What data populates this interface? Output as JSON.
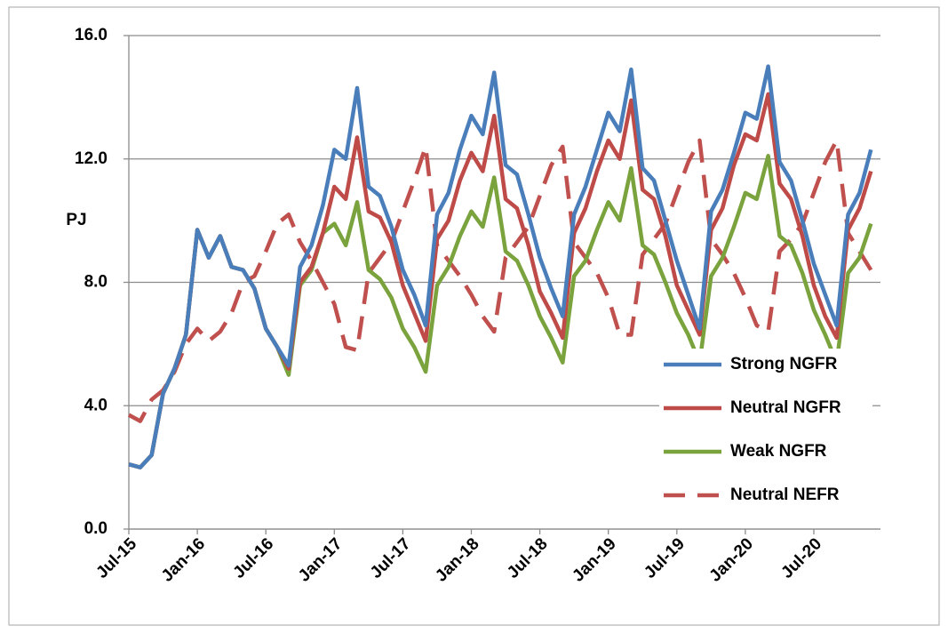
{
  "chart_data": {
    "type": "line",
    "y_label": "PJ",
    "categories": [
      "Jul-15",
      null,
      null,
      null,
      null,
      null,
      "Jan-16",
      null,
      null,
      null,
      null,
      null,
      "Jul-16",
      null,
      null,
      null,
      null,
      null,
      "Jan-17",
      null,
      null,
      null,
      null,
      null,
      "Jul-17",
      null,
      null,
      null,
      null,
      null,
      "Jan-18",
      null,
      null,
      null,
      null,
      null,
      "Jul-18",
      null,
      null,
      null,
      null,
      null,
      "Jan-19",
      null,
      null,
      null,
      null,
      null,
      "Jul-19",
      null,
      null,
      null,
      null,
      null,
      "Jan-20",
      null,
      null,
      null,
      null,
      null,
      "Jul-20",
      null,
      null,
      null,
      null,
      null
    ],
    "series": [
      {
        "name": "Strong NGFR",
        "color": "#4a7ebb",
        "dashed": false,
        "values": [
          2.1,
          2.0,
          2.4,
          4.4,
          5.2,
          6.3,
          9.7,
          8.8,
          9.5,
          8.5,
          8.4,
          7.8,
          6.5,
          5.9,
          5.3,
          8.5,
          9.2,
          10.5,
          12.3,
          12.0,
          14.3,
          11.1,
          10.8,
          9.8,
          8.4,
          7.6,
          6.6,
          10.2,
          10.9,
          12.3,
          13.4,
          12.8,
          14.8,
          11.8,
          11.5,
          10.2,
          8.8,
          7.8,
          6.9,
          10.2,
          11.1,
          12.3,
          13.5,
          12.9,
          14.9,
          11.7,
          11.3,
          10.0,
          8.7,
          7.6,
          6.5,
          10.3,
          11.0,
          12.2,
          13.5,
          13.3,
          15.0,
          11.9,
          11.3,
          10.0,
          8.6,
          7.6,
          6.6,
          10.2,
          10.9,
          12.3
        ]
      },
      {
        "name": "Neutral NGFR",
        "color": "#be4b48",
        "dashed": false,
        "values": [
          2.1,
          2.0,
          2.4,
          4.4,
          5.2,
          6.3,
          9.7,
          8.8,
          9.5,
          8.5,
          8.4,
          7.8,
          6.5,
          5.9,
          5.2,
          8.0,
          8.5,
          9.6,
          11.1,
          10.7,
          12.7,
          10.3,
          10.1,
          9.3,
          7.9,
          7.0,
          6.1,
          9.4,
          10.0,
          11.3,
          12.2,
          11.6,
          13.4,
          10.7,
          10.4,
          9.2,
          7.7,
          7.0,
          6.2,
          9.6,
          10.4,
          11.6,
          12.6,
          12.0,
          13.9,
          11.0,
          10.7,
          9.5,
          7.9,
          7.1,
          6.3,
          9.7,
          10.4,
          11.8,
          12.8,
          12.6,
          14.1,
          11.2,
          10.7,
          9.5,
          7.9,
          6.9,
          6.2,
          9.7,
          10.4,
          11.6
        ]
      },
      {
        "name": "Weak NGFR",
        "color": "#7aa33e",
        "dashed": false,
        "values": [
          2.1,
          2.0,
          2.4,
          4.4,
          5.2,
          6.3,
          9.7,
          8.8,
          9.5,
          8.5,
          8.4,
          7.8,
          6.5,
          5.9,
          5.0,
          7.9,
          8.4,
          9.6,
          9.9,
          9.2,
          10.6,
          8.4,
          8.1,
          7.5,
          6.5,
          5.9,
          5.1,
          7.9,
          8.5,
          9.5,
          10.3,
          9.8,
          11.4,
          9.0,
          8.7,
          7.9,
          6.9,
          6.2,
          5.4,
          8.2,
          8.7,
          9.7,
          10.6,
          10.0,
          11.7,
          9.2,
          8.9,
          8.0,
          7.0,
          6.3,
          5.4,
          8.2,
          8.8,
          9.8,
          10.9,
          10.7,
          12.1,
          9.5,
          9.2,
          8.3,
          7.1,
          6.3,
          5.4,
          8.3,
          8.8,
          9.9
        ]
      },
      {
        "name": "Neutral NEFR",
        "color": "#c0504d",
        "dashed": true,
        "values": [
          3.7,
          3.5,
          4.2,
          4.5,
          5.1,
          6.0,
          6.5,
          6.1,
          6.4,
          7.0,
          8.0,
          8.2,
          9.0,
          9.9,
          10.2,
          9.3,
          8.7,
          8.0,
          7.3,
          5.9,
          5.8,
          8.3,
          8.8,
          9.3,
          10.3,
          11.3,
          12.4,
          9.2,
          8.7,
          8.2,
          7.6,
          6.9,
          6.4,
          8.8,
          9.3,
          9.8,
          10.8,
          11.8,
          12.4,
          9.3,
          8.8,
          8.3,
          7.5,
          6.3,
          6.3,
          8.9,
          9.4,
          9.9,
          10.9,
          11.9,
          12.6,
          9.4,
          8.9,
          8.3,
          7.5,
          6.6,
          6.4,
          9.0,
          9.4,
          9.9,
          10.9,
          11.9,
          12.6,
          9.6,
          9.0,
          8.4
        ]
      }
    ],
    "ylim": [
      0,
      16
    ],
    "yticks": [
      {
        "value": 0,
        "label": "0.0"
      },
      {
        "value": 4,
        "label": "4.0"
      },
      {
        "value": 8,
        "label": "8.0"
      },
      {
        "value": 12,
        "label": "12.0"
      },
      {
        "value": 16,
        "label": "16.0"
      }
    ],
    "grid": true,
    "legend": "lower right"
  }
}
